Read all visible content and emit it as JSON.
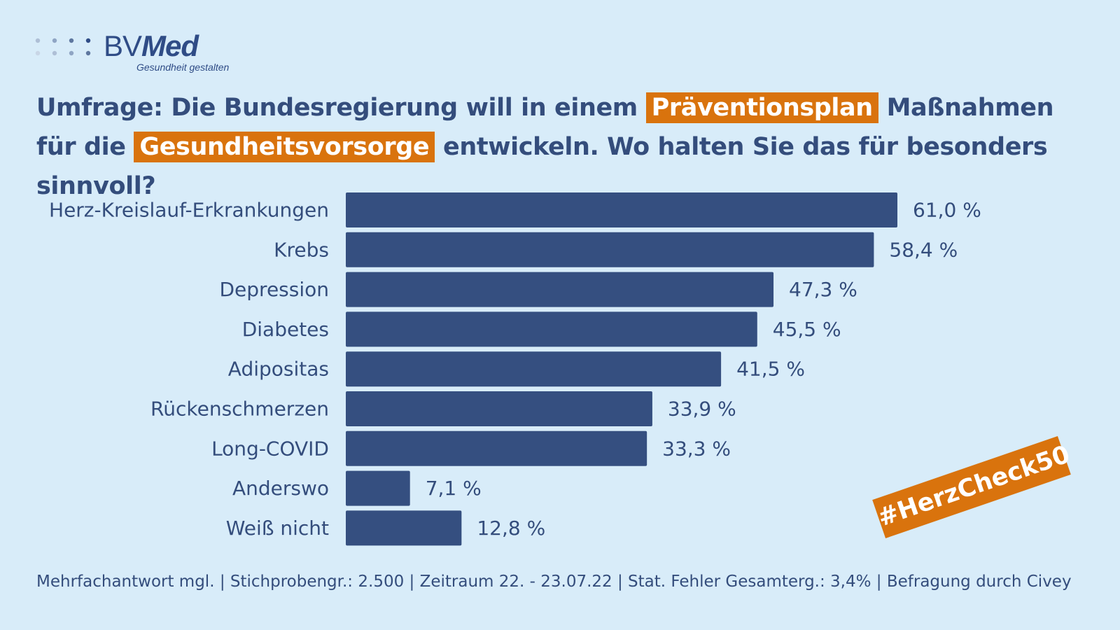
{
  "brand": {
    "name_part1": "BV",
    "name_part2": "Med",
    "tagline": "Gesundheit gestalten",
    "dot_colors": [
      "#c9d6e6",
      "#aebfd6",
      "#8fa5c4",
      "#5e779f",
      "#2f4c86"
    ]
  },
  "headline": {
    "part1": "Umfrage: Die Bundesregierung will in einem ",
    "highlight1": "Präventionsplan",
    "part2": " Maßnahmen für die ",
    "highlight2": "Gesundheitsvorsorge",
    "part3": " entwickeln. Wo halten Sie das für besonders sinnvoll?"
  },
  "colors": {
    "background": "#d8ecf9",
    "bar": "#354f80",
    "text": "#344d7c",
    "accent": "#d9730d"
  },
  "chart_data": {
    "type": "bar",
    "orientation": "horizontal",
    "title": "Umfrage: Die Bundesregierung will in einem Präventionsplan Maßnahmen für die Gesundheitsvorsorge entwickeln. Wo halten Sie das für besonders sinnvoll?",
    "unit": "%",
    "categories": [
      "Herz-Kreislauf-Erkrankungen",
      "Krebs",
      "Depression",
      "Diabetes",
      "Adipositas",
      "Rückenschmerzen",
      "Long-COVID",
      "Anderswo",
      "Weiß nicht"
    ],
    "values": [
      61.0,
      58.4,
      47.3,
      45.5,
      41.5,
      33.9,
      33.3,
      7.1,
      12.8
    ],
    "value_labels": [
      "61,0 %",
      "58,4 %",
      "47,3 %",
      "45,5 %",
      "41,5 %",
      "33,9 %",
      "33,3 %",
      "7,1 %",
      "12,8 %"
    ],
    "xlim": [
      0,
      61.0
    ],
    "grid": false,
    "legend": "none"
  },
  "badge": {
    "text": "#HerzCheck50"
  },
  "footer": {
    "text": "Mehrfachantwort mgl. | Stichprobengr.: 2.500 | Zeitraum 22. - 23.07.22 | Stat. Fehler Gesamterg.: 3,4% | Befragung durch Civey"
  }
}
